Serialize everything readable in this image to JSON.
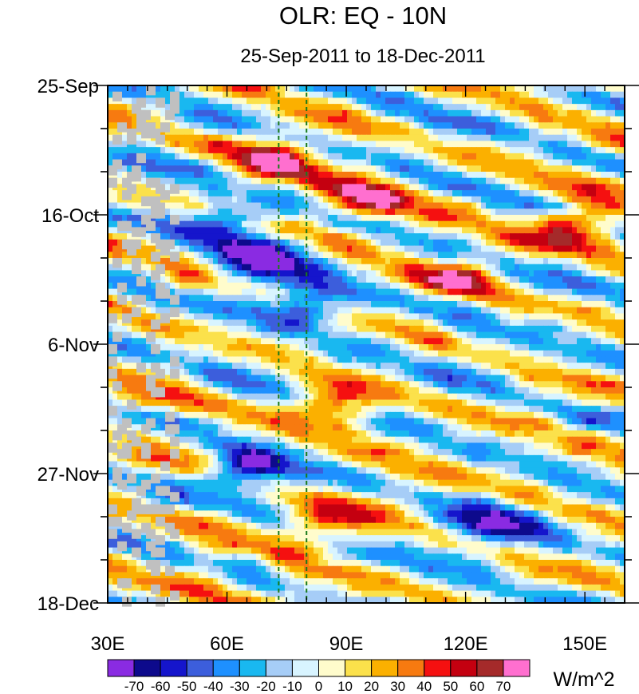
{
  "chart_data": {
    "type": "heatmap",
    "title": "OLR: EQ - 10N",
    "subtitle": "25-Sep-2011 to 18-Dec-2011",
    "xlabel": "",
    "ylabel": "",
    "x_range": [
      30,
      160
    ],
    "y_range_days": [
      0,
      84
    ],
    "x_ticks": [
      {
        "value": 30,
        "label": "30E"
      },
      {
        "value": 60,
        "label": "60E"
      },
      {
        "value": 90,
        "label": "90E"
      },
      {
        "value": 120,
        "label": "120E"
      },
      {
        "value": 150,
        "label": "150E"
      }
    ],
    "y_ticks": [
      {
        "day": 0,
        "label": "25-Sep"
      },
      {
        "day": 21,
        "label": "16-Oct"
      },
      {
        "day": 42,
        "label": "6-Nov"
      },
      {
        "day": 63,
        "label": "27-Nov"
      },
      {
        "day": 84,
        "label": "18-Dec"
      }
    ],
    "reference_lines_lon": [
      73,
      80
    ],
    "colorbar": {
      "units": "W/m^2",
      "levels": [
        "-70",
        "-60",
        "-50",
        "-40",
        "-30",
        "-20",
        "-10",
        "0",
        "10",
        "20",
        "30",
        "40",
        "50",
        "60",
        "70"
      ],
      "colors": [
        "#8a2be2",
        "#0d0a8c",
        "#1515cc",
        "#3c5edc",
        "#1e90ff",
        "#19b8f0",
        "#a6cdf7",
        "#d8f4ff",
        "#fffccc",
        "#fbe14b",
        "#fbb000",
        "#f77a10",
        "#f51010",
        "#c40010",
        "#a52a2a",
        "#ff6fcf"
      ]
    },
    "missing_color": "#c0c0c0",
    "features": [
      {
        "lon": 73,
        "day": 12.5,
        "value": 62,
        "note": "strong positive anomaly"
      },
      {
        "lon": 94,
        "day": 18,
        "value": 58,
        "note": "strong positive anomaly"
      },
      {
        "lon": 145,
        "day": 22.5,
        "value": 48
      },
      {
        "lon": 118,
        "day": 31,
        "value": 48
      },
      {
        "lon": 88,
        "day": 52,
        "value": 55
      },
      {
        "lon": 84,
        "day": 71,
        "value": 45
      },
      {
        "lon": 69,
        "day": 28.5,
        "value": -68
      },
      {
        "lon": 66,
        "day": 62.5,
        "value": -70
      },
      {
        "lon": 126,
        "day": 71.5,
        "value": -62
      },
      {
        "lon": 63,
        "day": 22,
        "value": -55
      },
      {
        "lon": 80,
        "day": 35.5,
        "value": -58
      }
    ]
  }
}
